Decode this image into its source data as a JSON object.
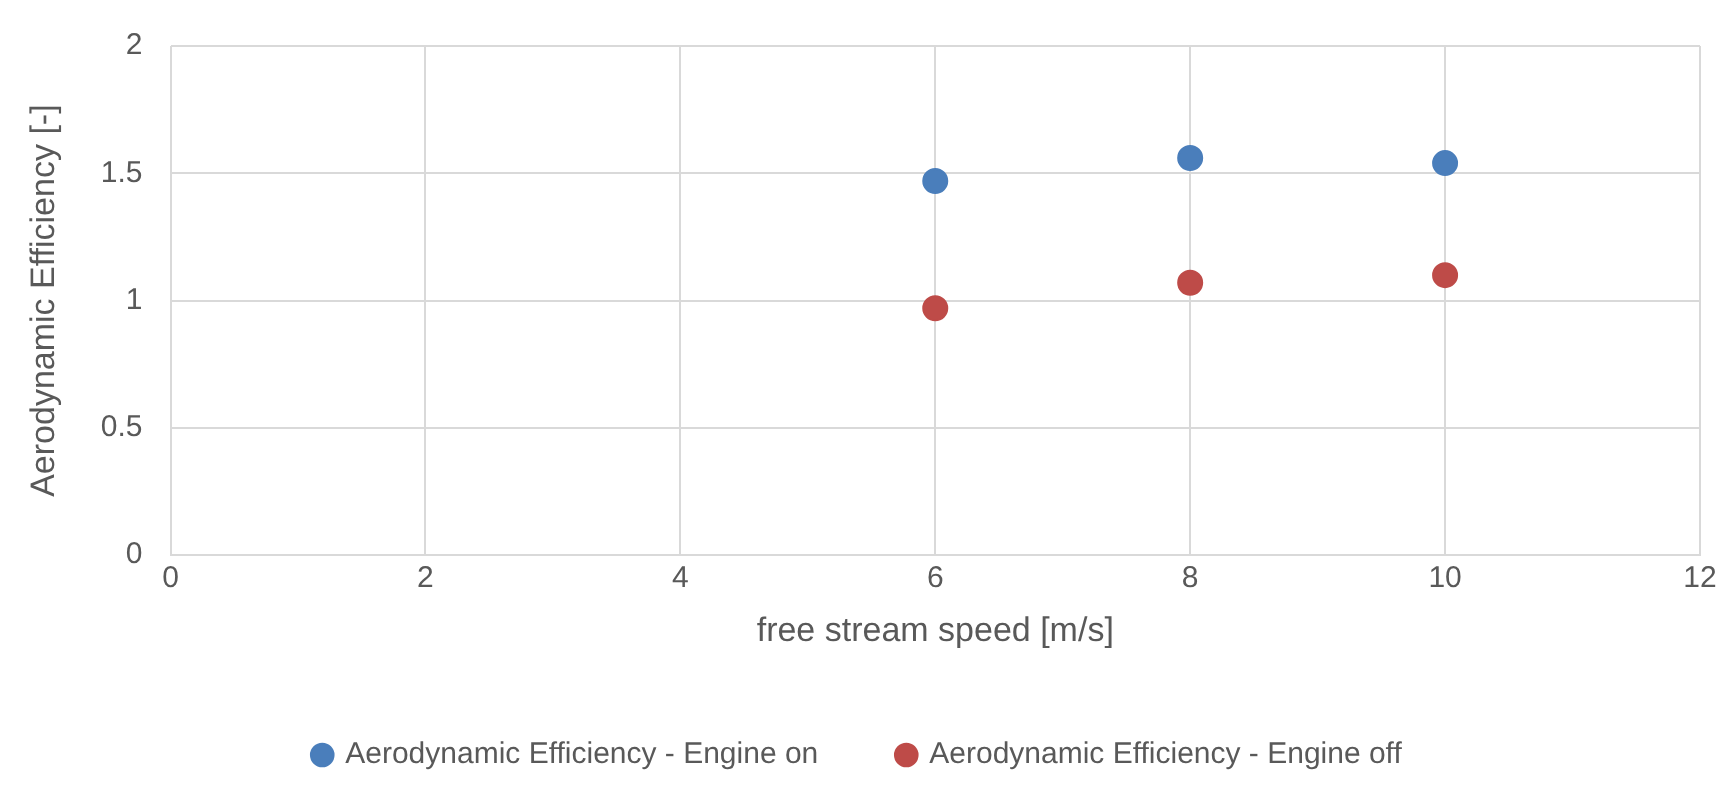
{
  "chart_data": {
    "type": "scatter",
    "xlabel": "free stream speed [m/s]",
    "ylabel": "Aerodynamic Efficiency [-]",
    "x": [
      6,
      8,
      10
    ],
    "series": [
      {
        "name": "Aerodynamic Efficiency - Engine on",
        "color": "#4a7ebb",
        "values": [
          1.47,
          1.56,
          1.54
        ]
      },
      {
        "name": "Aerodynamic Efficiency - Engine off",
        "color": "#be4b48",
        "values": [
          0.97,
          1.07,
          1.1
        ]
      }
    ],
    "xlim": [
      0,
      12
    ],
    "xticks": [
      0,
      2,
      4,
      6,
      8,
      10,
      12
    ],
    "ylim": [
      0,
      2
    ],
    "yticks": [
      0,
      0.5,
      1,
      1.5,
      2
    ],
    "grid": true,
    "legend": "bottom",
    "marker": "circle"
  }
}
